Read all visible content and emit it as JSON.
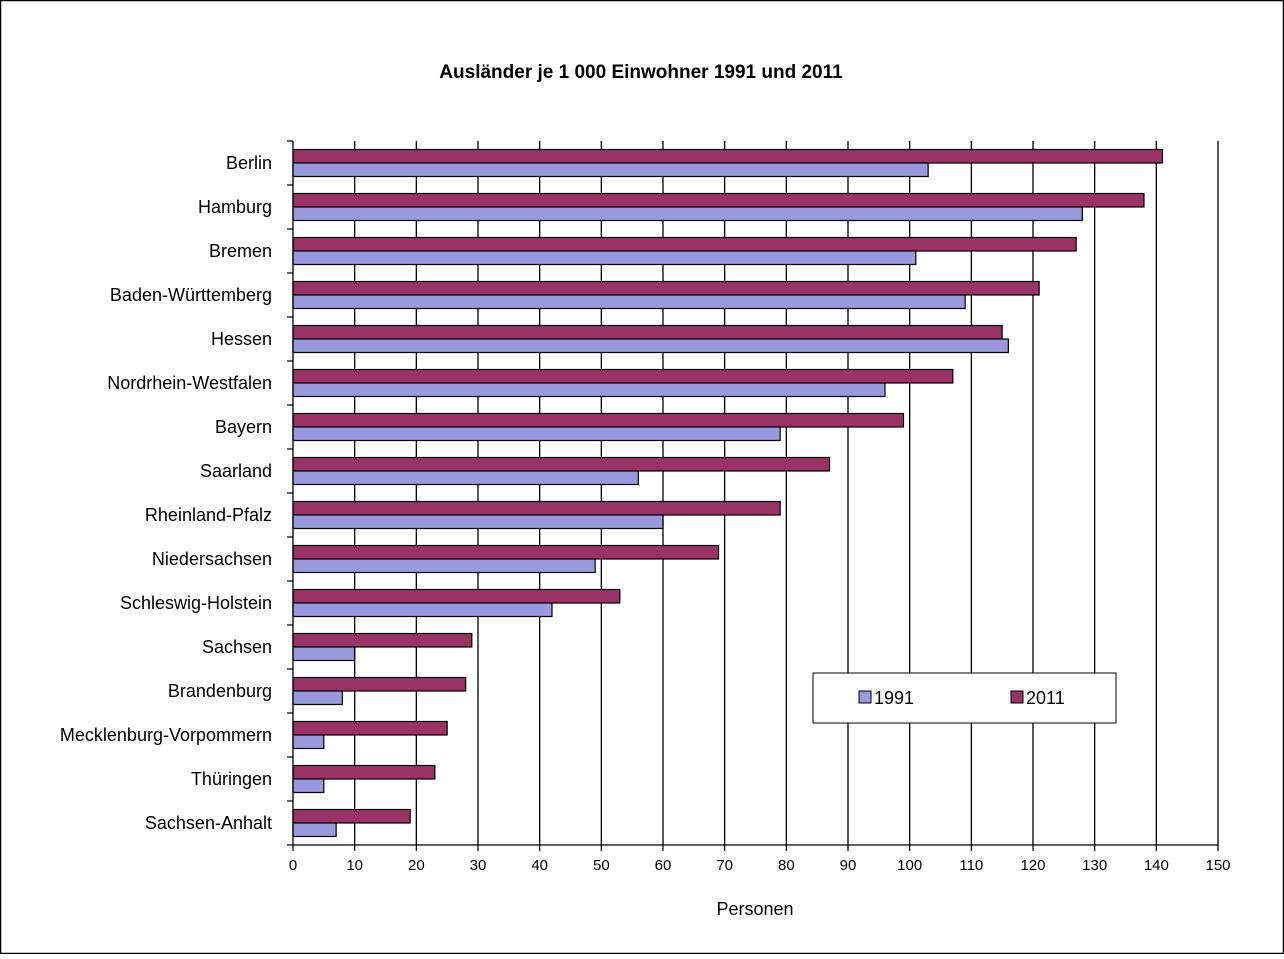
{
  "chart_data": {
    "type": "bar",
    "orientation": "horizontal",
    "title": "Ausländer je 1 000 Einwohner 1991 und 2011",
    "xlabel": "Personen",
    "ylabel": "",
    "xlim": [
      0,
      150
    ],
    "xticks": [
      "0",
      "10",
      "20",
      "30",
      "40",
      "50",
      "60",
      "70",
      "80",
      "90",
      "100",
      "110",
      "120",
      "130",
      "140",
      "150"
    ],
    "grid": "vertical",
    "legend_position": "lower-right inside plot",
    "categories": [
      "Berlin",
      "Hamburg",
      "Bremen",
      "Baden-Württemberg",
      "Hessen",
      "Nordrhein-Westfalen",
      "Bayern",
      "Saarland",
      "Rheinland-Pfalz",
      "Niedersachsen",
      "Schleswig-Holstein",
      "Sachsen",
      "Brandenburg",
      "Mecklenburg-Vorpommern",
      "Thüringen",
      "Sachsen-Anhalt"
    ],
    "series": [
      {
        "name": "1991",
        "color": "#9999dd",
        "values": [
          103,
          128,
          101,
          109,
          116,
          96,
          79,
          56,
          60,
          49,
          42,
          10,
          8,
          5,
          5,
          7
        ]
      },
      {
        "name": "2011",
        "color": "#993366",
        "values": [
          141,
          138,
          127,
          121,
          115,
          107,
          99,
          87,
          79,
          69,
          53,
          29,
          28,
          25,
          23,
          19
        ]
      }
    ]
  }
}
